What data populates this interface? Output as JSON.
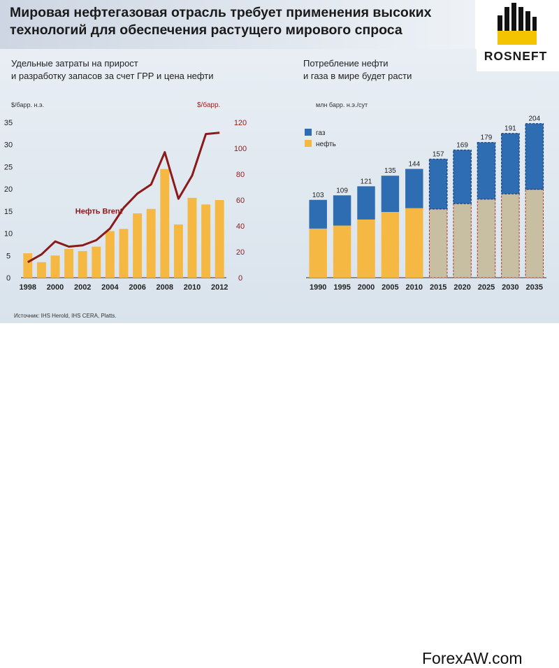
{
  "header": {
    "title_line1": "Мировая нефтегазовая отрасль требует применения высоких",
    "title_line2": "технологий для обеспечения растущего мирового спроса"
  },
  "logo": {
    "name": "ROSNEFT",
    "icon": "rosneft-logo-icon",
    "icon_color": "#f5c400"
  },
  "footer": {
    "source": "Источник: IHS Herold, IHS CERA, Platts.",
    "watermark": "ForexAW.com"
  },
  "chart_data": [
    {
      "type": "bar",
      "title_line1": "Удельные затраты на прирост",
      "title_line2": "и разработку запасов за счет ГРР и цена нефти",
      "ylabel": "$/барр. н.э.",
      "y2label": "$/барр.",
      "ylim": [
        0,
        35
      ],
      "y2lim": [
        0,
        120
      ],
      "yticks": [
        0,
        5,
        10,
        15,
        20,
        25,
        30,
        35
      ],
      "y2ticks": [
        0,
        20,
        40,
        60,
        80,
        100,
        120
      ],
      "categories": [
        "1998",
        "1999",
        "2000",
        "2001",
        "2002",
        "2003",
        "2004",
        "2005",
        "2006",
        "2007",
        "2008",
        "2009",
        "2010",
        "2011",
        "2012"
      ],
      "xtick_labels": [
        "1998",
        "",
        "2000",
        "",
        "2002",
        "",
        "2004",
        "",
        "2006",
        "",
        "2008",
        "",
        "2010",
        "",
        "2012"
      ],
      "series": [
        {
          "values": [
            5.5,
            3.5,
            5.0,
            6.5,
            6.0,
            7.0,
            10.5,
            11.0,
            14.5,
            15.5,
            24.5,
            12.0,
            18.0,
            16.5,
            17.5
          ],
          "color": "#f5b843"
        },
        {
          "name": "Нефть Brent",
          "axis": "right",
          "type": "line",
          "values": [
            12,
            18,
            28,
            24,
            25,
            29,
            38,
            54,
            65,
            72,
            97,
            61,
            79,
            111,
            112
          ],
          "color": "#8b1a1a"
        }
      ],
      "grid": false
    },
    {
      "type": "bar",
      "stacked": true,
      "title_line1": "Потребление нефти",
      "title_line2": "и газа в мире будет расти",
      "ylabel": "млн барр. н.э./сут",
      "categories": [
        "1990",
        "1995",
        "2000",
        "2005",
        "2010",
        "2015",
        "2020",
        "2025",
        "2030",
        "2035"
      ],
      "totals": [
        103,
        109,
        121,
        135,
        144,
        157,
        169,
        179,
        191,
        204
      ],
      "forecast_from": "2015",
      "series": [
        {
          "name": "газ",
          "values": [
            38,
            40,
            44,
            48,
            52,
            66,
            71,
            75,
            80,
            87
          ],
          "color": "#2f6db3"
        },
        {
          "name": "нефть",
          "values": [
            65,
            69,
            77,
            87,
            92,
            91,
            98,
            104,
            111,
            117
          ],
          "color": "#f5b843",
          "forecast_color": "#c8bfa2"
        }
      ],
      "ylim": [
        0,
        210
      ],
      "grid": false
    }
  ]
}
